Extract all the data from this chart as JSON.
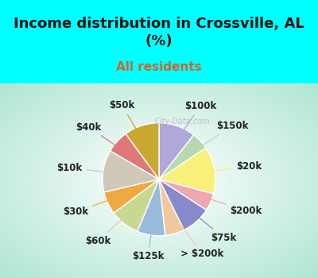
{
  "title": "Income distribution in Crossville, AL\n(%)",
  "subtitle": "All residents",
  "title_fontsize": 13,
  "subtitle_fontsize": 11,
  "title_color": "#111111",
  "subtitle_color": "#cc6633",
  "background_top": "#00FFFF",
  "labels": [
    "$100k",
    "$150k",
    "$20k",
    "$200k",
    "$75k",
    "> $200k",
    "$125k",
    "$60k",
    "$30k",
    "$10k",
    "$40k",
    "$50k"
  ],
  "sizes": [
    10.5,
    5.0,
    13.5,
    5.0,
    8.5,
    5.5,
    8.0,
    8.5,
    6.5,
    12.0,
    6.5,
    10.0
  ],
  "colors": [
    "#b0a8d8",
    "#b8d8b0",
    "#f8f07a",
    "#f0a8b0",
    "#8888cc",
    "#f0c8a0",
    "#9abcdc",
    "#c8d890",
    "#f0a840",
    "#d0c8b8",
    "#e07878",
    "#c8a830"
  ],
  "line_colors": [
    "#b0a8d8",
    "#b8d8b0",
    "#f8f07a",
    "#f0a8b0",
    "#8888cc",
    "#f0c8a0",
    "#9abcdc",
    "#c8d890",
    "#f0a840",
    "#d0c8b8",
    "#e07878",
    "#c8a830"
  ],
  "startangle": 90,
  "label_fontsize": 8.5,
  "label_color": "#222222",
  "watermark": "City-Data.com"
}
